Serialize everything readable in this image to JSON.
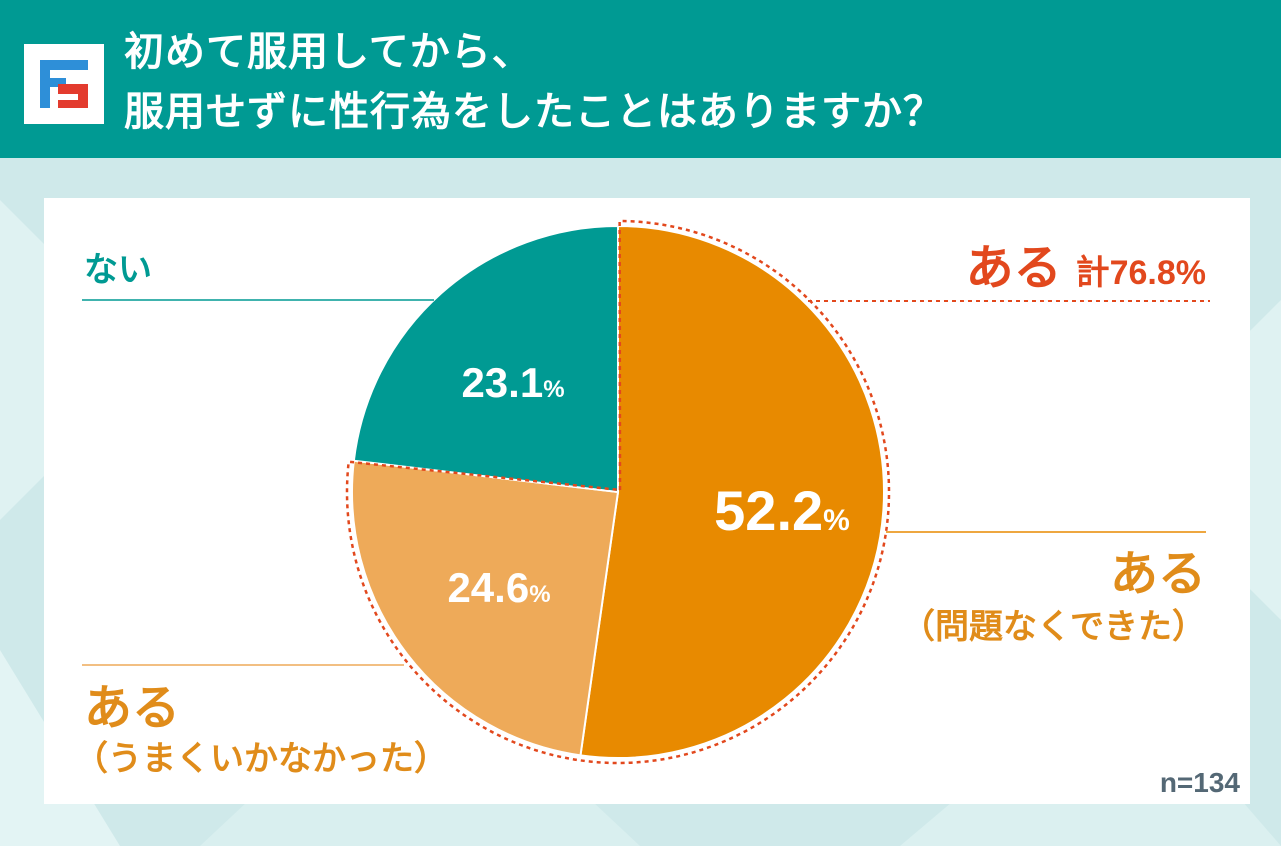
{
  "header": {
    "title_line1": "初めて服用してから、",
    "title_line2": "服用せずに性行為をしたことはありますか？",
    "logo_icon": "f-logo-icon"
  },
  "colors": {
    "header_bg": "#009a93",
    "teal": "#009a93",
    "orange": "#e88a00",
    "light_orange": "#eeaa59",
    "red": "#e2481d",
    "label_orange": "#e08c1a",
    "sample_text": "#546875"
  },
  "chart_data": {
    "type": "pie",
    "start_angle_deg": 0,
    "direction": "clockwise",
    "slices": [
      {
        "label": "ある",
        "sublabel": "（問題なくできた）",
        "value": 52.2,
        "value_label": "52.2",
        "unit": "%",
        "color": "#e88a00"
      },
      {
        "label": "ある",
        "sublabel": "（うまくいかなかった）",
        "value": 24.6,
        "value_label": "24.6",
        "unit": "%",
        "color": "#eeaa59"
      },
      {
        "label": "ない",
        "sublabel": "",
        "value": 23.1,
        "value_label": "23.1",
        "unit": "%",
        "color": "#009a93"
      }
    ],
    "group_annotation": {
      "label": "ある",
      "total_label": "計76.8%",
      "value": 76.8,
      "color": "#e2481d"
    },
    "sample_size": "n=134"
  }
}
